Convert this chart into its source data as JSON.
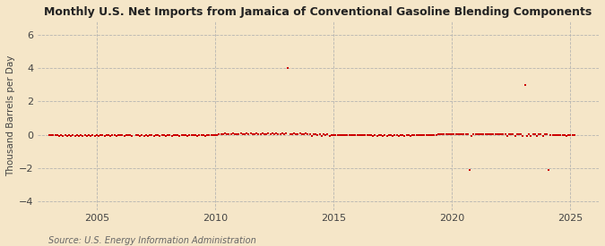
{
  "title": "Monthly U.S. Net Imports from Jamaica of Conventional Gasoline Blending Components",
  "ylabel": "Thousand Barrels per Day",
  "source": "Source: U.S. Energy Information Administration",
  "background_color": "#f5e6c8",
  "plot_bg_color": "#f5e6c8",
  "marker_color": "#cc0000",
  "grid_color": "#b0b0b0",
  "axis_color": "#444444",
  "tick_color": "#444444",
  "xlim": [
    2002.5,
    2026.2
  ],
  "ylim": [
    -4.5,
    6.8
  ],
  "yticks": [
    -4,
    -2,
    0,
    2,
    4,
    6
  ],
  "xticks": [
    2005,
    2010,
    2015,
    2020,
    2025
  ],
  "data_points": [
    [
      2003.0,
      0
    ],
    [
      2003.083,
      0
    ],
    [
      2003.167,
      0
    ],
    [
      2003.25,
      0
    ],
    [
      2003.333,
      0
    ],
    [
      2003.417,
      -0.05
    ],
    [
      2003.5,
      0
    ],
    [
      2003.583,
      -0.05
    ],
    [
      2003.667,
      0
    ],
    [
      2003.75,
      -0.05
    ],
    [
      2003.833,
      0
    ],
    [
      2003.917,
      -0.05
    ],
    [
      2004.0,
      0
    ],
    [
      2004.083,
      -0.05
    ],
    [
      2004.167,
      0
    ],
    [
      2004.25,
      -0.05
    ],
    [
      2004.333,
      0
    ],
    [
      2004.417,
      -0.05
    ],
    [
      2004.5,
      0
    ],
    [
      2004.583,
      -0.05
    ],
    [
      2004.667,
      0
    ],
    [
      2004.75,
      -0.05
    ],
    [
      2004.833,
      0
    ],
    [
      2004.917,
      -0.05
    ],
    [
      2005.0,
      0
    ],
    [
      2005.083,
      -0.05
    ],
    [
      2005.167,
      0
    ],
    [
      2005.25,
      0
    ],
    [
      2005.333,
      -0.05
    ],
    [
      2005.417,
      0
    ],
    [
      2005.5,
      0
    ],
    [
      2005.583,
      -0.05
    ],
    [
      2005.667,
      0
    ],
    [
      2005.75,
      0
    ],
    [
      2005.833,
      -0.05
    ],
    [
      2005.917,
      0
    ],
    [
      2006.0,
      0
    ],
    [
      2006.083,
      0
    ],
    [
      2006.167,
      -0.05
    ],
    [
      2006.25,
      0
    ],
    [
      2006.333,
      0
    ],
    [
      2006.417,
      0
    ],
    [
      2006.5,
      -0.05
    ],
    [
      2006.667,
      0
    ],
    [
      2006.75,
      0
    ],
    [
      2006.833,
      -0.05
    ],
    [
      2006.917,
      0
    ],
    [
      2007.0,
      -0.05
    ],
    [
      2007.083,
      0
    ],
    [
      2007.167,
      -0.05
    ],
    [
      2007.25,
      0
    ],
    [
      2007.333,
      0
    ],
    [
      2007.417,
      -0.05
    ],
    [
      2007.5,
      0
    ],
    [
      2007.583,
      0
    ],
    [
      2007.667,
      -0.05
    ],
    [
      2007.75,
      0
    ],
    [
      2007.833,
      0
    ],
    [
      2007.917,
      -0.05
    ],
    [
      2008.0,
      0
    ],
    [
      2008.083,
      0
    ],
    [
      2008.167,
      -0.05
    ],
    [
      2008.25,
      0
    ],
    [
      2008.333,
      0
    ],
    [
      2008.417,
      0
    ],
    [
      2008.5,
      -0.05
    ],
    [
      2008.583,
      0
    ],
    [
      2008.667,
      0
    ],
    [
      2008.75,
      0
    ],
    [
      2008.833,
      -0.05
    ],
    [
      2008.917,
      0
    ],
    [
      2009.0,
      0
    ],
    [
      2009.083,
      0
    ],
    [
      2009.167,
      0
    ],
    [
      2009.25,
      -0.05
    ],
    [
      2009.333,
      0
    ],
    [
      2009.417,
      0
    ],
    [
      2009.5,
      0
    ],
    [
      2009.583,
      -0.05
    ],
    [
      2009.667,
      0
    ],
    [
      2009.75,
      0
    ],
    [
      2009.833,
      0
    ],
    [
      2009.917,
      0
    ],
    [
      2010.0,
      0
    ],
    [
      2010.083,
      0
    ],
    [
      2010.167,
      0.05
    ],
    [
      2010.25,
      0.05
    ],
    [
      2010.333,
      0.05
    ],
    [
      2010.417,
      0.1
    ],
    [
      2010.5,
      0.05
    ],
    [
      2010.583,
      0.05
    ],
    [
      2010.667,
      0.05
    ],
    [
      2010.75,
      0.1
    ],
    [
      2010.833,
      0.05
    ],
    [
      2010.917,
      0.05
    ],
    [
      2011.0,
      0.05
    ],
    [
      2011.083,
      0.1
    ],
    [
      2011.167,
      0.05
    ],
    [
      2011.25,
      0.05
    ],
    [
      2011.333,
      0.1
    ],
    [
      2011.417,
      0.05
    ],
    [
      2011.5,
      0.1
    ],
    [
      2011.583,
      0.05
    ],
    [
      2011.667,
      0.05
    ],
    [
      2011.75,
      0.1
    ],
    [
      2011.833,
      0.05
    ],
    [
      2011.917,
      0.05
    ],
    [
      2012.0,
      0.1
    ],
    [
      2012.083,
      0.05
    ],
    [
      2012.167,
      0.05
    ],
    [
      2012.25,
      0.1
    ],
    [
      2012.333,
      0.05
    ],
    [
      2012.417,
      0.1
    ],
    [
      2012.5,
      0.05
    ],
    [
      2012.583,
      0.1
    ],
    [
      2012.667,
      0.05
    ],
    [
      2012.75,
      0.05
    ],
    [
      2012.833,
      0.1
    ],
    [
      2012.917,
      0.05
    ],
    [
      2013.0,
      0.1
    ],
    [
      2013.083,
      4.0
    ],
    [
      2013.167,
      0.05
    ],
    [
      2013.25,
      0.05
    ],
    [
      2013.333,
      0.1
    ],
    [
      2013.417,
      0.05
    ],
    [
      2013.5,
      0.05
    ],
    [
      2013.583,
      0.1
    ],
    [
      2013.667,
      0.05
    ],
    [
      2013.75,
      0.05
    ],
    [
      2013.833,
      0.1
    ],
    [
      2013.917,
      0.05
    ],
    [
      2014.0,
      0.05
    ],
    [
      2014.083,
      -0.05
    ],
    [
      2014.167,
      0.05
    ],
    [
      2014.25,
      0.05
    ],
    [
      2014.333,
      0.0
    ],
    [
      2014.417,
      0.05
    ],
    [
      2014.5,
      -0.05
    ],
    [
      2014.583,
      0.05
    ],
    [
      2014.667,
      0.0
    ],
    [
      2014.75,
      0.05
    ],
    [
      2014.833,
      -0.05
    ],
    [
      2014.917,
      0.0
    ],
    [
      2015.0,
      0.0
    ],
    [
      2015.083,
      0.0
    ],
    [
      2015.167,
      0.0
    ],
    [
      2015.25,
      0.0
    ],
    [
      2015.333,
      0.0
    ],
    [
      2015.417,
      0.0
    ],
    [
      2015.5,
      0.0
    ],
    [
      2015.583,
      0.0
    ],
    [
      2015.667,
      0.0
    ],
    [
      2015.75,
      0.0
    ],
    [
      2015.833,
      0.0
    ],
    [
      2015.917,
      0.0
    ],
    [
      2016.0,
      0.0
    ],
    [
      2016.083,
      0.0
    ],
    [
      2016.167,
      0.0
    ],
    [
      2016.25,
      0.0
    ],
    [
      2016.333,
      0.0
    ],
    [
      2016.417,
      0.0
    ],
    [
      2016.5,
      0.0
    ],
    [
      2016.583,
      0.0
    ],
    [
      2016.667,
      -0.05
    ],
    [
      2016.75,
      0.0
    ],
    [
      2016.833,
      -0.05
    ],
    [
      2016.917,
      0.0
    ],
    [
      2017.0,
      0.0
    ],
    [
      2017.083,
      -0.05
    ],
    [
      2017.167,
      0.0
    ],
    [
      2017.25,
      -0.05
    ],
    [
      2017.333,
      0.0
    ],
    [
      2017.417,
      0.0
    ],
    [
      2017.5,
      -0.05
    ],
    [
      2017.583,
      0.0
    ],
    [
      2017.667,
      0.0
    ],
    [
      2017.75,
      -0.05
    ],
    [
      2017.833,
      0.0
    ],
    [
      2017.917,
      0.0
    ],
    [
      2018.0,
      -0.05
    ],
    [
      2018.083,
      0.0
    ],
    [
      2018.167,
      0.0
    ],
    [
      2018.25,
      -0.05
    ],
    [
      2018.333,
      0.0
    ],
    [
      2018.417,
      0.0
    ],
    [
      2018.5,
      0.0
    ],
    [
      2018.583,
      0.0
    ],
    [
      2018.667,
      0.0
    ],
    [
      2018.75,
      0.0
    ],
    [
      2018.833,
      0.0
    ],
    [
      2018.917,
      0.0
    ],
    [
      2019.0,
      0.0
    ],
    [
      2019.083,
      0.0
    ],
    [
      2019.167,
      0.0
    ],
    [
      2019.25,
      0.0
    ],
    [
      2019.333,
      0.0
    ],
    [
      2019.417,
      0.05
    ],
    [
      2019.5,
      0.05
    ],
    [
      2019.583,
      0.05
    ],
    [
      2019.667,
      0.05
    ],
    [
      2019.75,
      0.05
    ],
    [
      2019.833,
      0.05
    ],
    [
      2019.917,
      0.05
    ],
    [
      2020.0,
      0.05
    ],
    [
      2020.083,
      0.05
    ],
    [
      2020.167,
      0.05
    ],
    [
      2020.25,
      0.05
    ],
    [
      2020.333,
      0.05
    ],
    [
      2020.417,
      0.05
    ],
    [
      2020.5,
      0.05
    ],
    [
      2020.583,
      0.05
    ],
    [
      2020.667,
      0.05
    ],
    [
      2020.75,
      -2.1
    ],
    [
      2020.833,
      -0.05
    ],
    [
      2020.917,
      0.05
    ],
    [
      2021.0,
      0.05
    ],
    [
      2021.083,
      0.05
    ],
    [
      2021.167,
      0.05
    ],
    [
      2021.25,
      0.05
    ],
    [
      2021.333,
      0.05
    ],
    [
      2021.417,
      0.05
    ],
    [
      2021.5,
      0.05
    ],
    [
      2021.583,
      0.05
    ],
    [
      2021.667,
      0.05
    ],
    [
      2021.75,
      0.05
    ],
    [
      2021.833,
      0.05
    ],
    [
      2021.917,
      0.05
    ],
    [
      2022.0,
      0.05
    ],
    [
      2022.083,
      0.05
    ],
    [
      2022.167,
      0.05
    ],
    [
      2022.25,
      0.05
    ],
    [
      2022.333,
      -0.05
    ],
    [
      2022.417,
      0.05
    ],
    [
      2022.5,
      0.05
    ],
    [
      2022.583,
      0.05
    ],
    [
      2022.667,
      -0.05
    ],
    [
      2022.75,
      0.05
    ],
    [
      2022.833,
      0.05
    ],
    [
      2022.917,
      0.05
    ],
    [
      2023.0,
      -0.05
    ],
    [
      2023.083,
      3.0
    ],
    [
      2023.167,
      -0.05
    ],
    [
      2023.25,
      0.05
    ],
    [
      2023.333,
      -0.05
    ],
    [
      2023.417,
      0.05
    ],
    [
      2023.5,
      0.05
    ],
    [
      2023.583,
      -0.05
    ],
    [
      2023.667,
      0.05
    ],
    [
      2023.75,
      0.05
    ],
    [
      2023.833,
      -0.05
    ],
    [
      2023.917,
      0.05
    ],
    [
      2024.0,
      0.05
    ],
    [
      2024.083,
      -2.1
    ],
    [
      2024.167,
      0.0
    ],
    [
      2024.25,
      0.0
    ],
    [
      2024.333,
      0.0
    ],
    [
      2024.417,
      0.0
    ],
    [
      2024.5,
      0.0
    ],
    [
      2024.583,
      0.0
    ],
    [
      2024.667,
      0.0
    ],
    [
      2024.75,
      0.0
    ],
    [
      2024.833,
      -0.05
    ],
    [
      2024.917,
      0.0
    ],
    [
      2025.0,
      0.0
    ],
    [
      2025.083,
      0.0
    ],
    [
      2025.167,
      0.0
    ]
  ]
}
